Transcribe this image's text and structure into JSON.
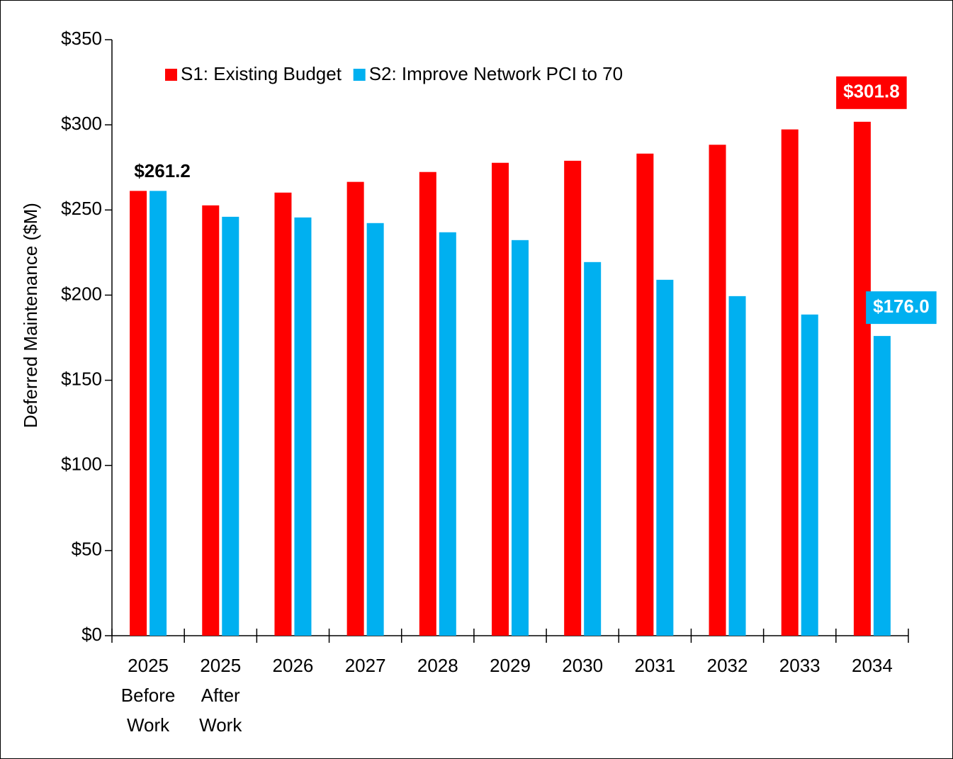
{
  "chart_data": {
    "type": "bar",
    "y_axis_label": "Deferred Maintenance ($M)",
    "categories": [
      [
        "2025",
        "Before",
        "Work"
      ],
      [
        "2025",
        "After",
        "Work"
      ],
      [
        "2026"
      ],
      [
        "2027"
      ],
      [
        "2028"
      ],
      [
        "2029"
      ],
      [
        "2030"
      ],
      [
        "2031"
      ],
      [
        "2032"
      ],
      [
        "2033"
      ],
      [
        "2034"
      ]
    ],
    "series": [
      {
        "name": "S1: Existing Budget",
        "color": "#ff0000",
        "values": [
          261.2,
          252.7,
          260.2,
          266.5,
          272.3,
          277.7,
          278.9,
          283.1,
          288.3,
          297.3,
          301.8
        ],
        "value_labels": [
          "$261.2",
          null,
          null,
          null,
          null,
          null,
          null,
          null,
          null,
          null,
          "$301.8"
        ]
      },
      {
        "name": "S2: Improve Network PCI to 70",
        "color": "#00b0f0",
        "values": [
          261.2,
          246.0,
          245.6,
          242.3,
          236.9,
          232.3,
          219.4,
          209.0,
          199.4,
          188.6,
          176.0
        ],
        "value_labels": [
          null,
          null,
          null,
          null,
          null,
          null,
          null,
          null,
          null,
          null,
          "$176.0"
        ]
      }
    ],
    "ylim": [
      0,
      350
    ],
    "yticks": [
      {
        "value": 0,
        "label": "$0"
      },
      {
        "value": 50,
        "label": "$50"
      },
      {
        "value": 100,
        "label": "$100"
      },
      {
        "value": 150,
        "label": "$150"
      },
      {
        "value": 200,
        "label": "$200"
      },
      {
        "value": 250,
        "label": "$250"
      },
      {
        "value": 300,
        "label": "$300"
      },
      {
        "value": 350,
        "label": "$350"
      }
    ],
    "legend": "top-left"
  }
}
